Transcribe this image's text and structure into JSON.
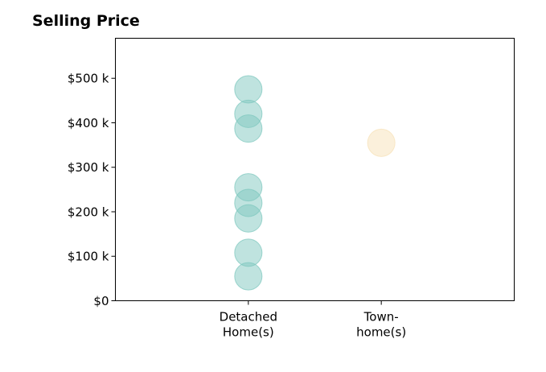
{
  "chart_data": {
    "type": "scatter",
    "title": "Selling Price",
    "xlabel": "",
    "ylabel": "",
    "categories": [
      [
        "Detached",
        "Home(s)"
      ],
      [
        "Town-",
        "home(s)"
      ]
    ],
    "xlim": [
      0,
      3
    ],
    "ylim": [
      0,
      590000
    ],
    "y_ticks": [
      {
        "value": 0,
        "label": "$0"
      },
      {
        "value": 100000,
        "label": "$100 k"
      },
      {
        "value": 200000,
        "label": "$200 k"
      },
      {
        "value": 300000,
        "label": "$300 k"
      },
      {
        "value": 400000,
        "label": "$400 k"
      },
      {
        "value": 500000,
        "label": "$500 k"
      }
    ],
    "grid": false,
    "series": [
      {
        "category_index": 0,
        "color": "#7fc8bf",
        "values": [
          475000,
          420000,
          387000,
          255000,
          220000,
          185000,
          108000,
          55000
        ]
      },
      {
        "category_index": 1,
        "color": "#f7e2b8",
        "values": [
          355000
        ]
      }
    ]
  }
}
